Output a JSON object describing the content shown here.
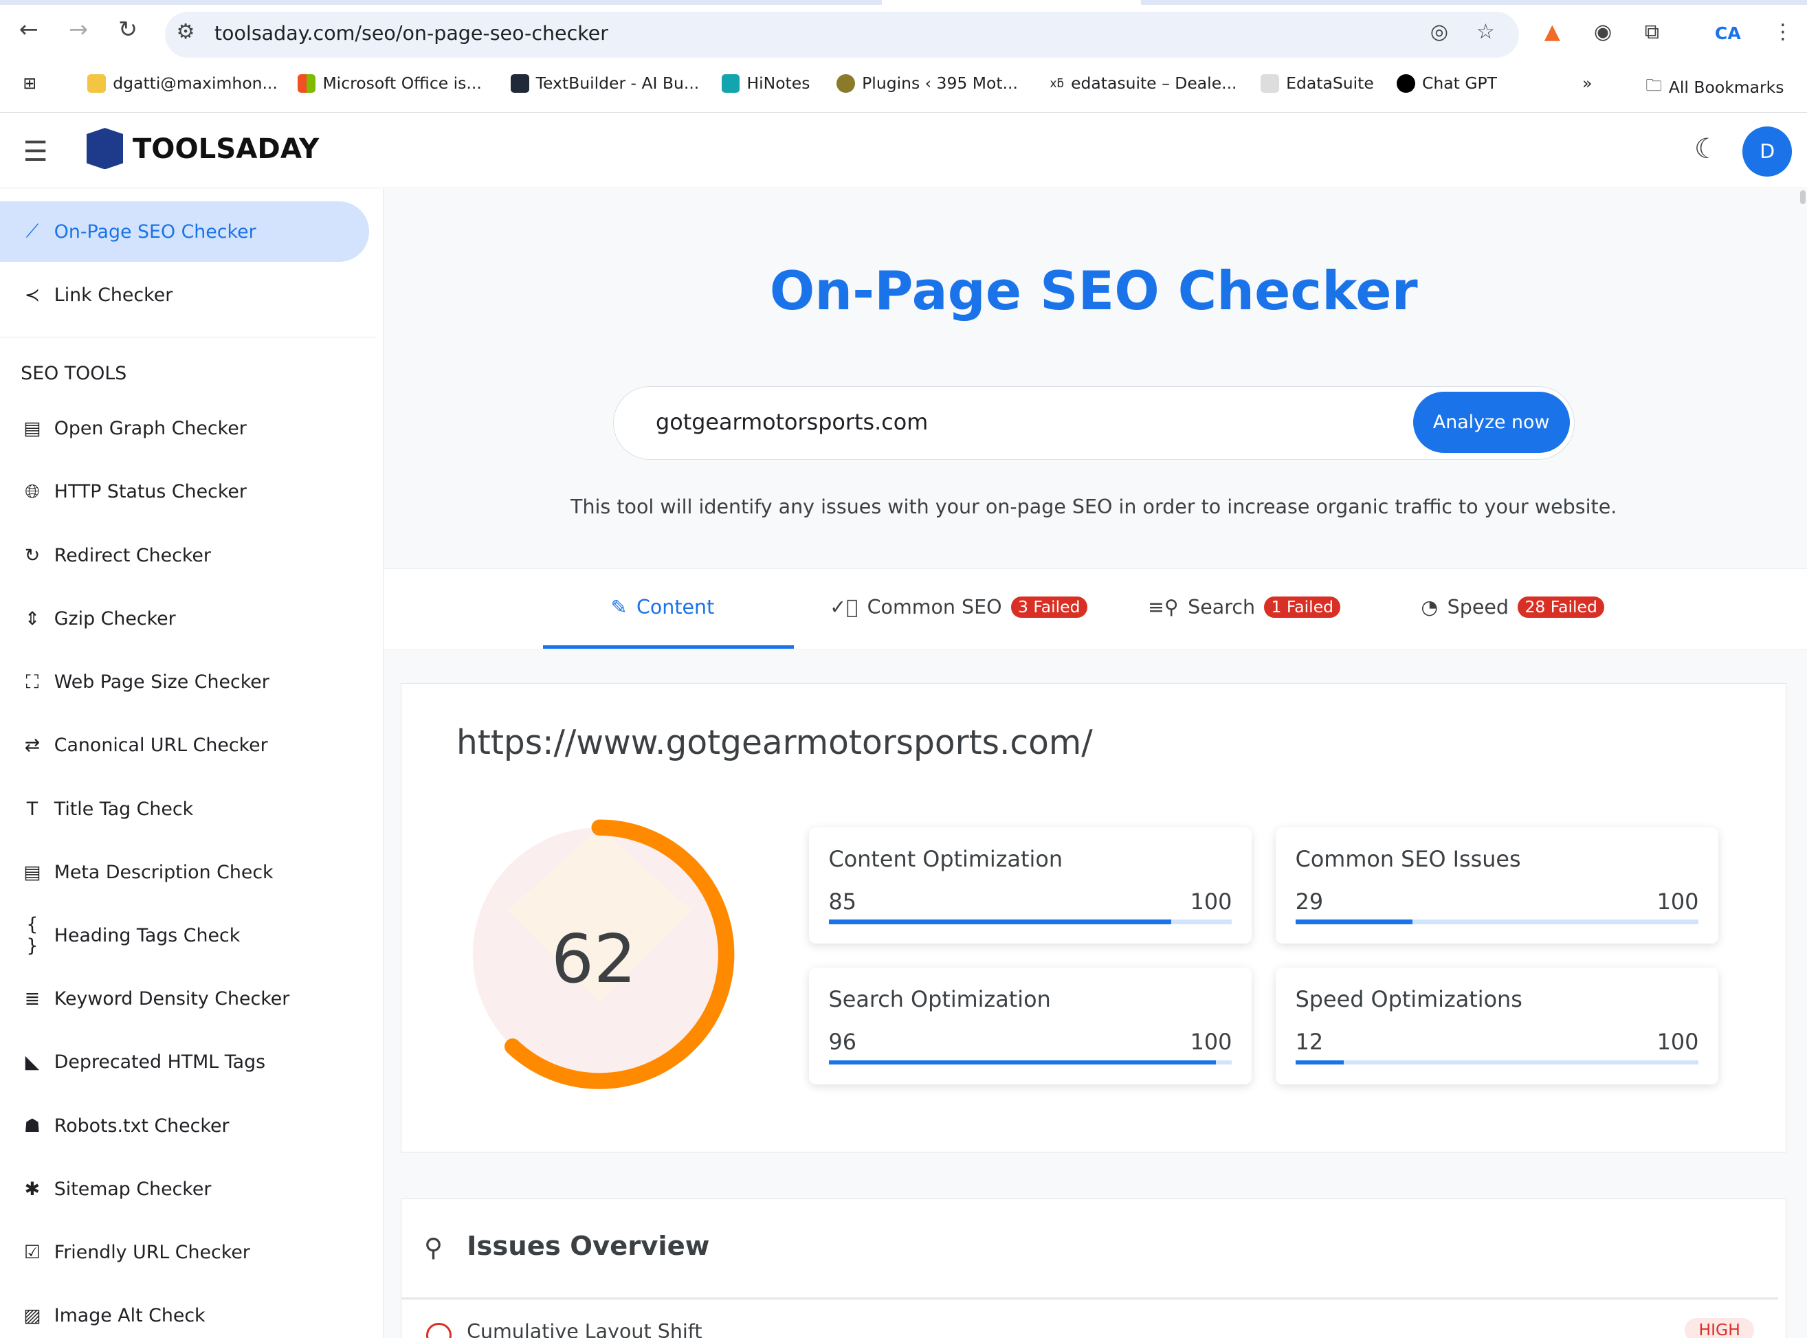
{
  "browser": {
    "url": "toolsaday.com/seo/on-page-seo-checker",
    "bookmarks": [
      {
        "label": "dgatti@maximhon...",
        "color": "#f4c542"
      },
      {
        "label": "Microsoft Office is...",
        "color": "#f25022"
      },
      {
        "label": "TextBuilder - AI Bu...",
        "color": "#1f2937"
      },
      {
        "label": "HiNotes",
        "color": "#12a5b0"
      },
      {
        "label": "Plugins ‹ 395 Mot...",
        "color": "#8a7a2a"
      },
      {
        "label": "edatasuite – Deale...",
        "color": "#ffffff"
      },
      {
        "label": "EdataSuite",
        "color": "#cccccc"
      },
      {
        "label": "Chat GPT",
        "color": "#000000"
      }
    ],
    "all_bookmarks": "All Bookmarks",
    "more": "»",
    "ca_icon": "CA"
  },
  "header": {
    "logo": "TOOLSADAY",
    "avatar": "D",
    "accent": "#1a73e8"
  },
  "sidebar": {
    "top_items": [
      {
        "label": "On-Page SEO Checker",
        "icon": "trend-icon"
      },
      {
        "label": "Link Checker",
        "icon": "share-icon"
      }
    ],
    "section": "SEO TOOLS",
    "items": [
      {
        "label": "Open Graph Checker",
        "icon": "▤"
      },
      {
        "label": "HTTP Status Checker",
        "icon": "🌐︎"
      },
      {
        "label": "Redirect Checker",
        "icon": "↻"
      },
      {
        "label": "Gzip Checker",
        "icon": "⇕"
      },
      {
        "label": "Web Page Size Checker",
        "icon": "⛶"
      },
      {
        "label": "Canonical URL Checker",
        "icon": "⇄"
      },
      {
        "label": "Title Tag Check",
        "icon": "T"
      },
      {
        "label": "Meta Description Check",
        "icon": "▤"
      },
      {
        "label": "Heading Tags Check",
        "icon": "{ }"
      },
      {
        "label": "Keyword Density Checker",
        "icon": "≣"
      },
      {
        "label": "Deprecated HTML Tags",
        "icon": "◣"
      },
      {
        "label": "Robots.txt Checker",
        "icon": "☗"
      },
      {
        "label": "Sitemap Checker",
        "icon": "✱"
      },
      {
        "label": "Friendly URL Checker",
        "icon": "☑"
      },
      {
        "label": "Image Alt Check",
        "icon": "▨"
      }
    ]
  },
  "main": {
    "title": "On-Page SEO Checker",
    "input_value": "gotgearmotorsports.com",
    "analyze": "Analyze now",
    "description": "This tool will identify any issues with your on-page SEO in order to increase organic traffic to your website.",
    "tabs": [
      {
        "label": "Content",
        "badge": ""
      },
      {
        "label": "Common SEO",
        "badge": "3 Failed"
      },
      {
        "label": "Search",
        "badge": "1 Failed"
      },
      {
        "label": "Speed",
        "badge": "28 Failed"
      }
    ],
    "page_url": "https://www.gotgearmotorsports.com/",
    "score": 62,
    "score_color": "#ff8a00",
    "metrics": [
      {
        "label": "Content Optimization",
        "value": 85,
        "max": 100
      },
      {
        "label": "Common SEO Issues",
        "value": 29,
        "max": 100
      },
      {
        "label": "Search Optimization",
        "value": 96,
        "max": 100
      },
      {
        "label": "Speed Optimizations",
        "value": 12,
        "max": 100
      }
    ],
    "issues_title": "Issues Overview",
    "first_issue": "Cumulative Layout Shift",
    "first_issue_badge": "HIGH"
  }
}
